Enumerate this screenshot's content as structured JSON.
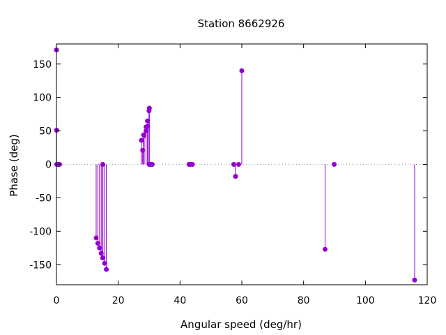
{
  "chart_data": {
    "type": "scatter",
    "style": "impulses-with-points",
    "title": "Station 8662926",
    "xlabel": "Angular speed (deg/hr)",
    "ylabel": "Phase (deg)",
    "xlim": [
      0,
      120
    ],
    "ylim": [
      -180,
      180
    ],
    "xticks": [
      0,
      20,
      40,
      60,
      80,
      100,
      120
    ],
    "yticks": [
      -150,
      -100,
      -50,
      0,
      50,
      100,
      150
    ],
    "grid": false,
    "zero_line": "dotted",
    "color": "#9400d3",
    "points": [
      {
        "x": 0.0,
        "y": 171
      },
      {
        "x": 0.04,
        "y": 51
      },
      {
        "x": 0.08,
        "y": 0
      },
      {
        "x": 0.5,
        "y": 0
      },
      {
        "x": 1.0,
        "y": 0
      },
      {
        "x": 12.85,
        "y": -110
      },
      {
        "x": 13.4,
        "y": -118
      },
      {
        "x": 13.94,
        "y": -125
      },
      {
        "x": 14.49,
        "y": -133
      },
      {
        "x": 14.96,
        "y": -140
      },
      {
        "x": 15.0,
        "y": 0
      },
      {
        "x": 15.04,
        "y": -140
      },
      {
        "x": 15.59,
        "y": -148
      },
      {
        "x": 16.14,
        "y": -157
      },
      {
        "x": 27.5,
        "y": 36
      },
      {
        "x": 27.9,
        "y": 21
      },
      {
        "x": 28.2,
        "y": 44
      },
      {
        "x": 28.4,
        "y": 43
      },
      {
        "x": 28.99,
        "y": 50
      },
      {
        "x": 29.0,
        "y": 56
      },
      {
        "x": 29.46,
        "y": 65
      },
      {
        "x": 29.53,
        "y": 57
      },
      {
        "x": 29.96,
        "y": 80
      },
      {
        "x": 30.0,
        "y": 0
      },
      {
        "x": 30.08,
        "y": 84
      },
      {
        "x": 30.5,
        "y": 0
      },
      {
        "x": 31.0,
        "y": 0
      },
      {
        "x": 42.9,
        "y": 0
      },
      {
        "x": 43.5,
        "y": 0
      },
      {
        "x": 44.0,
        "y": 0
      },
      {
        "x": 57.4,
        "y": 0
      },
      {
        "x": 57.97,
        "y": -18
      },
      {
        "x": 58.98,
        "y": 0
      },
      {
        "x": 59.99,
        "y": 140
      },
      {
        "x": 86.95,
        "y": -127
      },
      {
        "x": 89.9,
        "y": 0
      },
      {
        "x": 115.94,
        "y": -173
      }
    ]
  }
}
